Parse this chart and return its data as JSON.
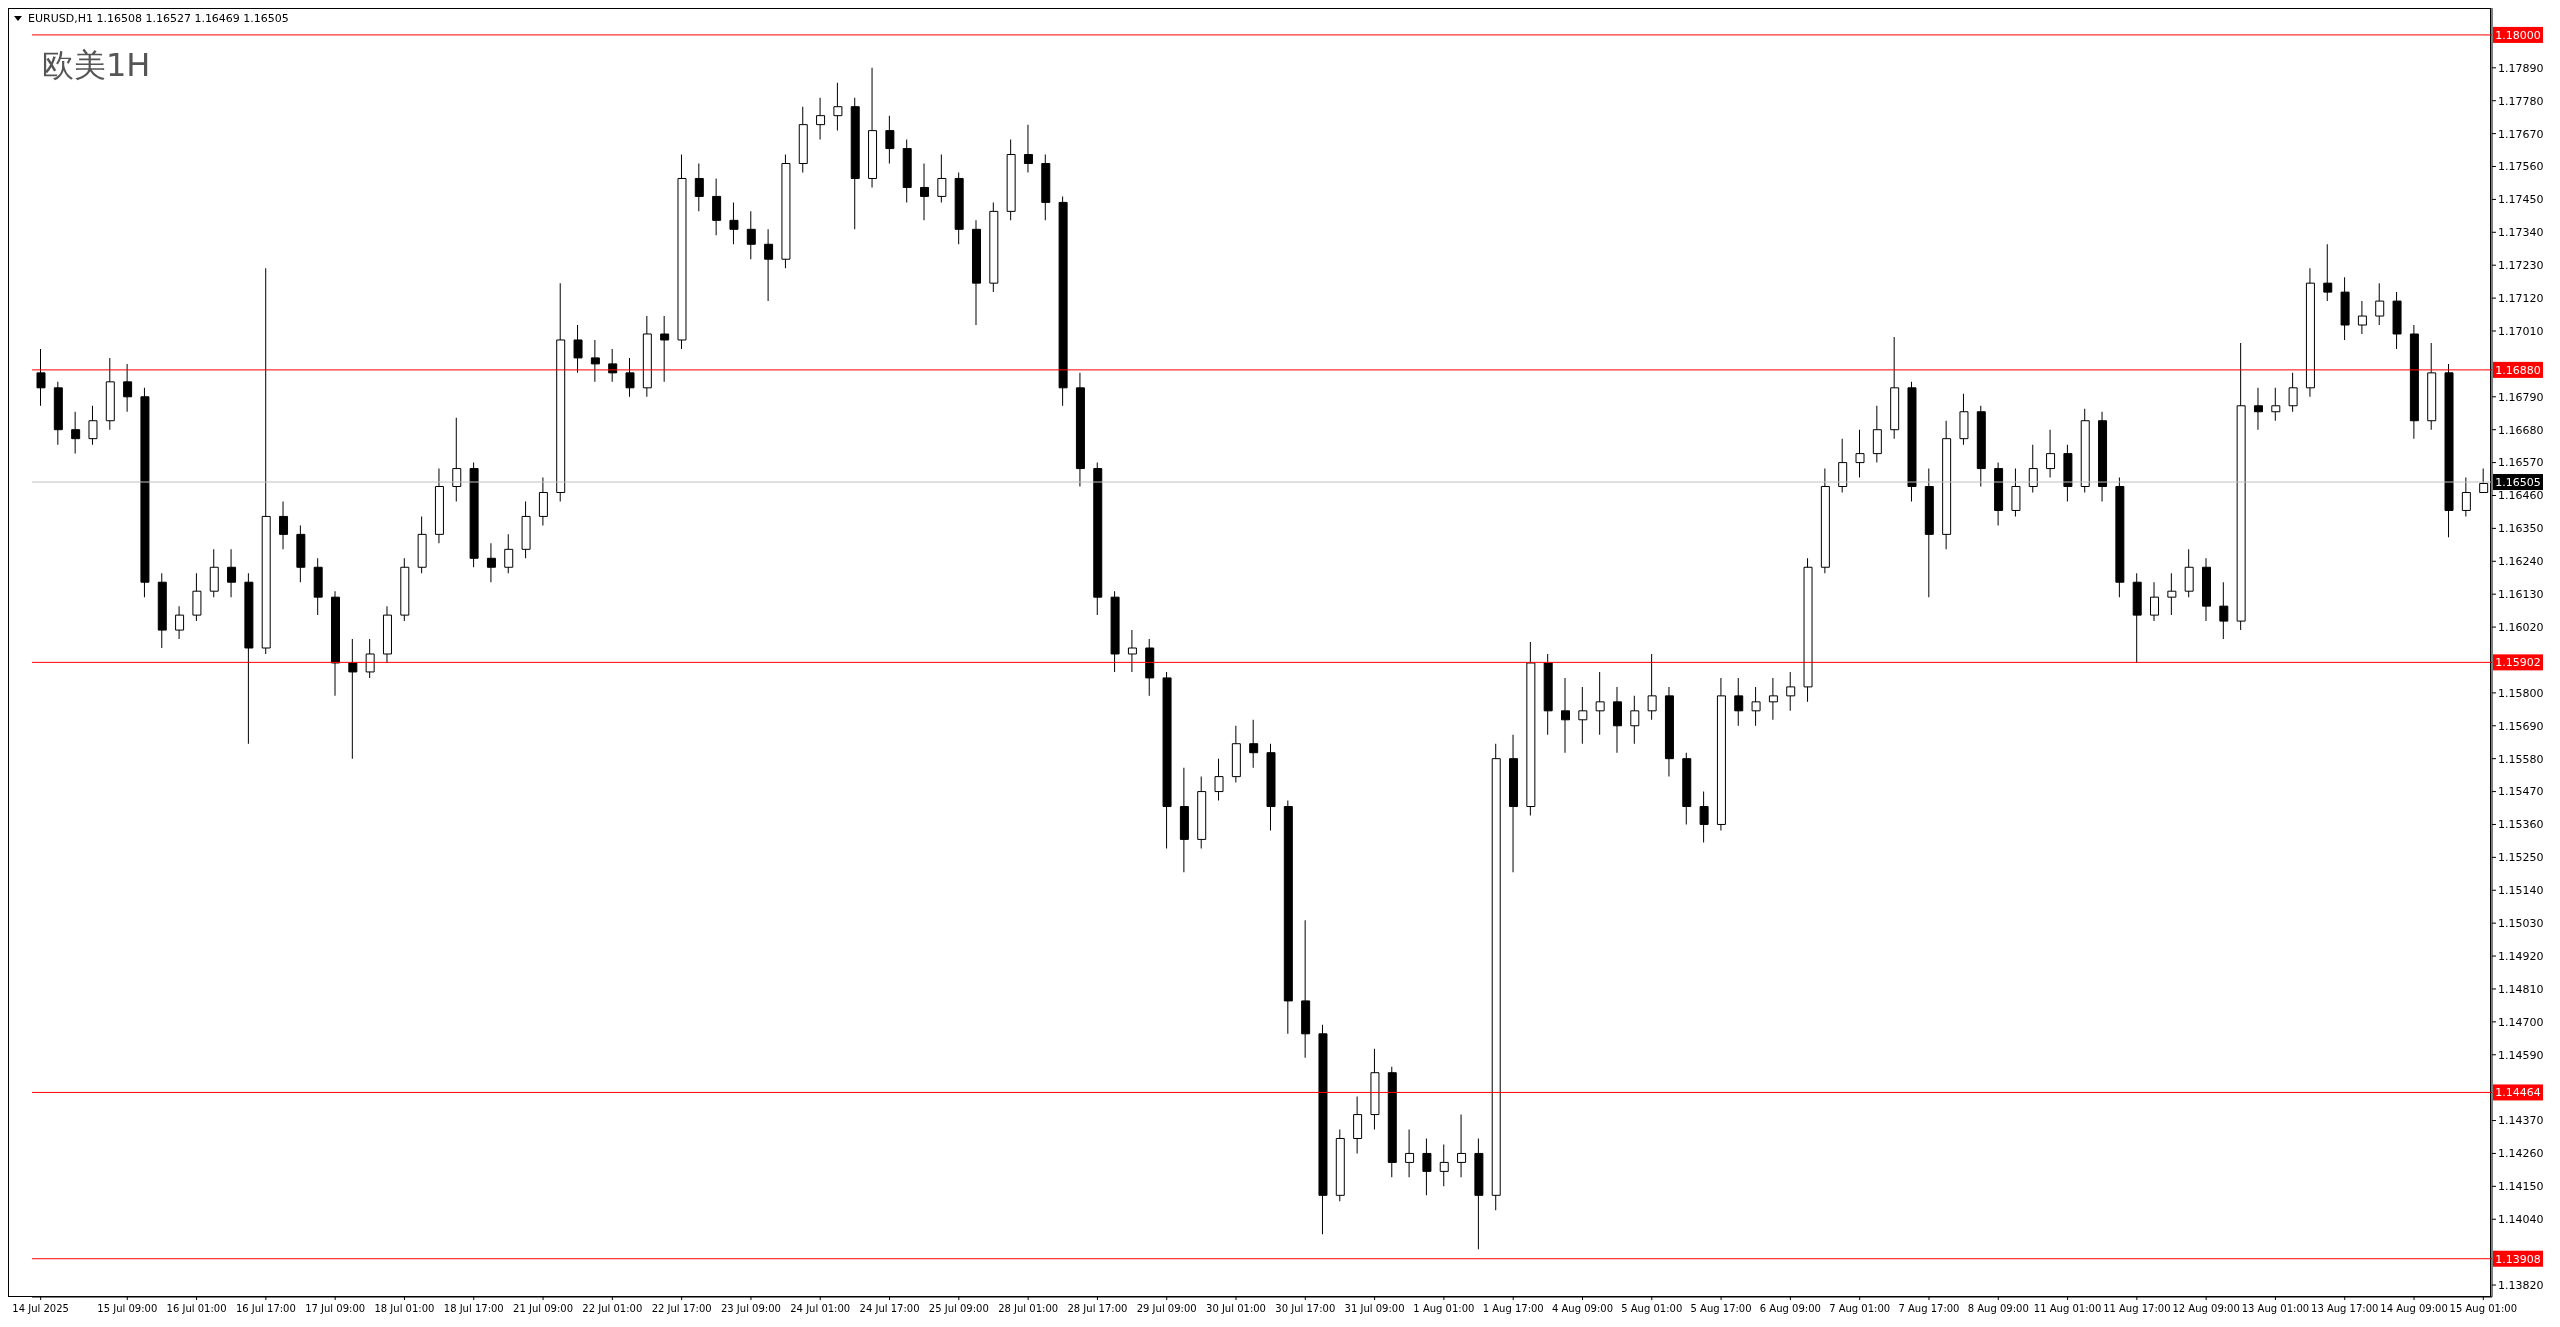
{
  "chart_data": {
    "type": "candlestick",
    "title": "EURUSD,H1 1.16508 1.16527 1.16469 1.16505",
    "annotations": [
      "欧美1H"
    ],
    "categories": [
      "14 Jul 2025",
      null,
      null,
      null,
      null,
      "15 Jul 09:00",
      null,
      null,
      null,
      "16 Jul 01:00",
      null,
      null,
      null,
      "16 Jul 17:00",
      null,
      null,
      null,
      "17 Jul 09:00",
      null,
      null,
      null,
      "18 Jul 01:00",
      null,
      null,
      null,
      "18 Jul 17:00",
      null,
      null,
      null,
      "21 Jul 09:00",
      null,
      null,
      null,
      "22 Jul 01:00",
      null,
      null,
      null,
      "22 Jul 17:00",
      null,
      null,
      null,
      "23 Jul 09:00",
      null,
      null,
      null,
      "24 Jul 01:00",
      null,
      null,
      null,
      "24 Jul 17:00",
      null,
      null,
      null,
      "25 Jul 09:00",
      null,
      null,
      null,
      "28 Jul 01:00",
      null,
      null,
      null,
      "28 Jul 17:00",
      null,
      null,
      null,
      "29 Jul 09:00",
      null,
      null,
      null,
      "30 Jul 01:00",
      null,
      null,
      null,
      "30 Jul 17:00",
      null,
      null,
      null,
      "31 Jul 09:00",
      null,
      null,
      null,
      "1 Aug 01:00",
      null,
      null,
      null,
      "1 Aug 17:00",
      null,
      null,
      null,
      "4 Aug 09:00",
      null,
      null,
      null,
      "5 Aug 01:00",
      null,
      null,
      null,
      "5 Aug 17:00",
      null,
      null,
      null,
      "6 Aug 09:00",
      null,
      null,
      null,
      "7 Aug 01:00",
      null,
      null,
      null,
      "7 Aug 17:00",
      null,
      null,
      null,
      "8 Aug 09:00",
      null,
      null,
      null,
      "11 Aug 01:00",
      null,
      null,
      null,
      "11 Aug 17:00",
      null,
      null,
      null,
      "12 Aug 09:00",
      null,
      null,
      null,
      "13 Aug 01:00",
      null,
      null,
      null,
      "13 Aug 17:00",
      null,
      null,
      null,
      "14 Aug 09:00",
      null,
      null,
      null,
      "15 Aug 01:00"
    ],
    "ohlc": [
      [
        1.1687,
        1.1695,
        1.1676,
        1.1682
      ],
      [
        1.1682,
        1.1684,
        1.1663,
        1.1668
      ],
      [
        1.1668,
        1.1674,
        1.166,
        1.1665
      ],
      [
        1.1665,
        1.1676,
        1.1663,
        1.1671
      ],
      [
        1.1671,
        1.1692,
        1.1668,
        1.1684
      ],
      [
        1.1684,
        1.169,
        1.1674,
        1.1679
      ],
      [
        1.1679,
        1.1682,
        1.1612,
        1.1617
      ],
      [
        1.1617,
        1.162,
        1.1595,
        1.1601
      ],
      [
        1.1601,
        1.1609,
        1.1598,
        1.1606
      ],
      [
        1.1606,
        1.162,
        1.1604,
        1.1614
      ],
      [
        1.1614,
        1.1628,
        1.1612,
        1.1622
      ],
      [
        1.1622,
        1.1628,
        1.1612,
        1.1617
      ],
      [
        1.1617,
        1.162,
        1.1563,
        1.1595
      ],
      [
        1.1595,
        1.1722,
        1.1593,
        1.1639
      ],
      [
        1.1639,
        1.1644,
        1.1628,
        1.1633
      ],
      [
        1.1633,
        1.1636,
        1.1617,
        1.1622
      ],
      [
        1.1622,
        1.1625,
        1.1606,
        1.1612
      ],
      [
        1.1612,
        1.1614,
        1.1579,
        1.159
      ],
      [
        1.159,
        1.1598,
        1.1558,
        1.1587
      ],
      [
        1.1587,
        1.1598,
        1.1585,
        1.1593
      ],
      [
        1.1593,
        1.1609,
        1.159,
        1.1606
      ],
      [
        1.1606,
        1.1625,
        1.1604,
        1.1622
      ],
      [
        1.1622,
        1.1639,
        1.162,
        1.1633
      ],
      [
        1.1633,
        1.1655,
        1.163,
        1.1649
      ],
      [
        1.1649,
        1.1672,
        1.1644,
        1.1655
      ],
      [
        1.1655,
        1.1657,
        1.1622,
        1.1625
      ],
      [
        1.1625,
        1.163,
        1.1617,
        1.1622
      ],
      [
        1.1622,
        1.1633,
        1.162,
        1.1628
      ],
      [
        1.1628,
        1.1644,
        1.1625,
        1.1639
      ],
      [
        1.1639,
        1.1652,
        1.1636,
        1.1647
      ],
      [
        1.1647,
        1.1717,
        1.1644,
        1.1698
      ],
      [
        1.1698,
        1.1703,
        1.1687,
        1.1692
      ],
      [
        1.1692,
        1.1698,
        1.1684,
        1.169
      ],
      [
        1.169,
        1.1695,
        1.1684,
        1.1687
      ],
      [
        1.1687,
        1.1692,
        1.1679,
        1.1682
      ],
      [
        1.1682,
        1.1706,
        1.1679,
        1.17
      ],
      [
        1.17,
        1.1706,
        1.1684,
        1.1698
      ],
      [
        1.1698,
        1.176,
        1.1695,
        1.1752
      ],
      [
        1.1752,
        1.1757,
        1.1741,
        1.1746
      ],
      [
        1.1746,
        1.1752,
        1.1733,
        1.1738
      ],
      [
        1.1738,
        1.1744,
        1.173,
        1.1735
      ],
      [
        1.1735,
        1.1741,
        1.1725,
        1.173
      ],
      [
        1.173,
        1.1735,
        1.1711,
        1.1725
      ],
      [
        1.1725,
        1.176,
        1.1722,
        1.1757
      ],
      [
        1.1757,
        1.1776,
        1.1754,
        1.177
      ],
      [
        1.177,
        1.1779,
        1.1765,
        1.1773
      ],
      [
        1.1773,
        1.1784,
        1.1768,
        1.1776
      ],
      [
        1.1776,
        1.1779,
        1.1735,
        1.1752
      ],
      [
        1.1752,
        1.1789,
        1.1749,
        1.1768
      ],
      [
        1.1768,
        1.1773,
        1.1757,
        1.1762
      ],
      [
        1.1762,
        1.1765,
        1.1744,
        1.1749
      ],
      [
        1.1749,
        1.1757,
        1.1738,
        1.1746
      ],
      [
        1.1746,
        1.176,
        1.1744,
        1.1752
      ],
      [
        1.1752,
        1.1754,
        1.173,
        1.1735
      ],
      [
        1.1735,
        1.1738,
        1.1703,
        1.1717
      ],
      [
        1.1717,
        1.1744,
        1.1714,
        1.1741
      ],
      [
        1.1741,
        1.1765,
        1.1738,
        1.176
      ],
      [
        1.176,
        1.177,
        1.1754,
        1.1757
      ],
      [
        1.1757,
        1.176,
        1.1738,
        1.1744
      ],
      [
        1.1744,
        1.1746,
        1.1676,
        1.1682
      ],
      [
        1.1682,
        1.1687,
        1.1649,
        1.1655
      ],
      [
        1.1655,
        1.1657,
        1.1606,
        1.1612
      ],
      [
        1.1612,
        1.1614,
        1.1587,
        1.1593
      ],
      [
        1.1593,
        1.1601,
        1.1587,
        1.1595
      ],
      [
        1.1595,
        1.1598,
        1.1579,
        1.1585
      ],
      [
        1.1585,
        1.1587,
        1.1528,
        1.1542
      ],
      [
        1.1542,
        1.1555,
        1.152,
        1.1531
      ],
      [
        1.1531,
        1.1552,
        1.1528,
        1.1547
      ],
      [
        1.1547,
        1.1558,
        1.1544,
        1.1552
      ],
      [
        1.1552,
        1.1569,
        1.155,
        1.1563
      ],
      [
        1.1563,
        1.1571,
        1.1555,
        1.156
      ],
      [
        1.156,
        1.1563,
        1.1534,
        1.1542
      ],
      [
        1.1542,
        1.1544,
        1.1466,
        1.1477
      ],
      [
        1.1477,
        1.1504,
        1.1458,
        1.1466
      ],
      [
        1.1466,
        1.1469,
        1.1399,
        1.1412
      ],
      [
        1.1412,
        1.1434,
        1.141,
        1.1431
      ],
      [
        1.1431,
        1.1445,
        1.1426,
        1.1439
      ],
      [
        1.1439,
        1.1461,
        1.1434,
        1.1453
      ],
      [
        1.1453,
        1.1455,
        1.1418,
        1.1423
      ],
      [
        1.1423,
        1.1434,
        1.1418,
        1.1426
      ],
      [
        1.1426,
        1.1431,
        1.1412,
        1.142
      ],
      [
        1.142,
        1.1429,
        1.1415,
        1.1423
      ],
      [
        1.1423,
        1.1439,
        1.1418,
        1.1426
      ],
      [
        1.1426,
        1.1431,
        1.1394,
        1.1412
      ],
      [
        1.1412,
        1.1563,
        1.1407,
        1.1558
      ],
      [
        1.1558,
        1.1566,
        1.152,
        1.1542
      ],
      [
        1.1542,
        1.1597,
        1.1539,
        1.159
      ],
      [
        1.159,
        1.1593,
        1.1566,
        1.1574
      ],
      [
        1.1574,
        1.1585,
        1.156,
        1.1571
      ],
      [
        1.1571,
        1.1582,
        1.1563,
        1.1574
      ],
      [
        1.1574,
        1.1587,
        1.1566,
        1.1577
      ],
      [
        1.1577,
        1.1582,
        1.156,
        1.1569
      ],
      [
        1.1569,
        1.1579,
        1.1563,
        1.1574
      ],
      [
        1.1574,
        1.1593,
        1.1571,
        1.1579
      ],
      [
        1.1579,
        1.1582,
        1.1552,
        1.1558
      ],
      [
        1.1558,
        1.156,
        1.1536,
        1.1542
      ],
      [
        1.1542,
        1.1547,
        1.153,
        1.1536
      ],
      [
        1.1536,
        1.1585,
        1.1534,
        1.1579
      ],
      [
        1.1579,
        1.1585,
        1.1569,
        1.1574
      ],
      [
        1.1574,
        1.1582,
        1.1569,
        1.1577
      ],
      [
        1.1577,
        1.1585,
        1.1571,
        1.1579
      ],
      [
        1.1579,
        1.1587,
        1.1574,
        1.1582
      ],
      [
        1.1582,
        1.1625,
        1.1577,
        1.1622
      ],
      [
        1.1622,
        1.1655,
        1.162,
        1.1649
      ],
      [
        1.1649,
        1.1665,
        1.1647,
        1.1657
      ],
      [
        1.1657,
        1.1668,
        1.1652,
        1.166
      ],
      [
        1.166,
        1.1676,
        1.1657,
        1.1668
      ],
      [
        1.1668,
        1.1699,
        1.1665,
        1.1682
      ],
      [
        1.1682,
        1.1684,
        1.1644,
        1.1649
      ],
      [
        1.1649,
        1.1655,
        1.1612,
        1.1633
      ],
      [
        1.1633,
        1.1671,
        1.1628,
        1.1665
      ],
      [
        1.1665,
        1.168,
        1.1663,
        1.1674
      ],
      [
        1.1674,
        1.1676,
        1.1649,
        1.1655
      ],
      [
        1.1655,
        1.1657,
        1.1636,
        1.1641
      ],
      [
        1.1641,
        1.1655,
        1.1639,
        1.1649
      ],
      [
        1.1649,
        1.1663,
        1.1647,
        1.1655
      ],
      [
        1.1655,
        1.1668,
        1.1652,
        1.166
      ],
      [
        1.166,
        1.1663,
        1.1644,
        1.1649
      ],
      [
        1.1649,
        1.1675,
        1.1647,
        1.1671
      ],
      [
        1.1671,
        1.1674,
        1.1644,
        1.1649
      ],
      [
        1.1649,
        1.1652,
        1.1612,
        1.1617
      ],
      [
        1.1617,
        1.162,
        1.159,
        1.1606
      ],
      [
        1.1606,
        1.1617,
        1.1604,
        1.1612
      ],
      [
        1.1612,
        1.162,
        1.1606,
        1.1614
      ],
      [
        1.1614,
        1.1628,
        1.1612,
        1.1622
      ],
      [
        1.1622,
        1.1625,
        1.1604,
        1.1609
      ],
      [
        1.1609,
        1.1617,
        1.1598,
        1.1604
      ],
      [
        1.1604,
        1.1697,
        1.1601,
        1.1676
      ],
      [
        1.1676,
        1.1682,
        1.1668,
        1.1674
      ],
      [
        1.1674,
        1.1682,
        1.1671,
        1.1676
      ],
      [
        1.1676,
        1.1687,
        1.1674,
        1.1682
      ],
      [
        1.1682,
        1.1722,
        1.1679,
        1.1717
      ],
      [
        1.1717,
        1.173,
        1.1711,
        1.1714
      ],
      [
        1.1714,
        1.1719,
        1.1698,
        1.1703
      ],
      [
        1.1703,
        1.1711,
        1.17,
        1.1706
      ],
      [
        1.1706,
        1.1717,
        1.1703,
        1.1711
      ],
      [
        1.1711,
        1.1714,
        1.1695,
        1.17
      ],
      [
        1.17,
        1.1703,
        1.1665,
        1.1671
      ],
      [
        1.1671,
        1.1697,
        1.1668,
        1.1687
      ],
      [
        1.1687,
        1.169,
        1.1632,
        1.1641
      ],
      [
        1.1641,
        1.1652,
        1.1639,
        1.1647
      ],
      [
        1.1647,
        1.1655,
        1.1647,
        1.165
      ]
    ],
    "ylim": [
      1.1378,
      1.1809
    ],
    "yticks": [
      {
        "value": 1.1382,
        "label": "1.13820"
      },
      {
        "value": 1.1404,
        "label": "1.14040"
      },
      {
        "value": 1.1415,
        "label": "1.14150"
      },
      {
        "value": 1.1426,
        "label": "1.14260"
      },
      {
        "value": 1.1437,
        "label": "1.14370"
      },
      {
        "value": 1.1459,
        "label": "1.14590"
      },
      {
        "value": 1.147,
        "label": "1.14700"
      },
      {
        "value": 1.1481,
        "label": "1.14810"
      },
      {
        "value": 1.1492,
        "label": "1.14920"
      },
      {
        "value": 1.1503,
        "label": "1.15030"
      },
      {
        "value": 1.1514,
        "label": "1.15140"
      },
      {
        "value": 1.1525,
        "label": "1.15250"
      },
      {
        "value": 1.1536,
        "label": "1.15360"
      },
      {
        "value": 1.1547,
        "label": "1.15470"
      },
      {
        "value": 1.1558,
        "label": "1.15580"
      },
      {
        "value": 1.1569,
        "label": "1.15690"
      },
      {
        "value": 1.158,
        "label": "1.15800"
      },
      {
        "value": 1.1602,
        "label": "1.16020"
      },
      {
        "value": 1.1613,
        "label": "1.16130"
      },
      {
        "value": 1.1624,
        "label": "1.16240"
      },
      {
        "value": 1.1635,
        "label": "1.16350"
      },
      {
        "value": 1.1646,
        "label": "1.16460"
      },
      {
        "value": 1.1657,
        "label": "1.16570"
      },
      {
        "value": 1.1668,
        "label": "1.16680"
      },
      {
        "value": 1.1679,
        "label": "1.16790"
      },
      {
        "value": 1.1701,
        "label": "1.17010"
      },
      {
        "value": 1.1712,
        "label": "1.17120"
      },
      {
        "value": 1.1723,
        "label": "1.17230"
      },
      {
        "value": 1.1734,
        "label": "1.17340"
      },
      {
        "value": 1.1745,
        "label": "1.17450"
      },
      {
        "value": 1.1756,
        "label": "1.17560"
      },
      {
        "value": 1.1767,
        "label": "1.17670"
      },
      {
        "value": 1.1778,
        "label": "1.17780"
      },
      {
        "value": 1.1789,
        "label": "1.17890"
      }
    ],
    "ref_lines": [
      {
        "axis": "y",
        "value": 1.18,
        "label": "1.18000",
        "color": "#ff0000"
      },
      {
        "axis": "y",
        "value": 1.1688,
        "label": "1.16880",
        "color": "#ff0000"
      },
      {
        "axis": "y",
        "value": 1.15902,
        "label": "1.15902",
        "color": "#ff0000"
      },
      {
        "axis": "y",
        "value": 1.14464,
        "label": "1.14464",
        "color": "#ff0000"
      },
      {
        "axis": "y",
        "value": 1.13908,
        "label": "1.13908",
        "color": "#ff0000"
      },
      {
        "axis": "y",
        "value": 1.16505,
        "label": "1.16505",
        "color": "#c0c0c0"
      }
    ]
  }
}
